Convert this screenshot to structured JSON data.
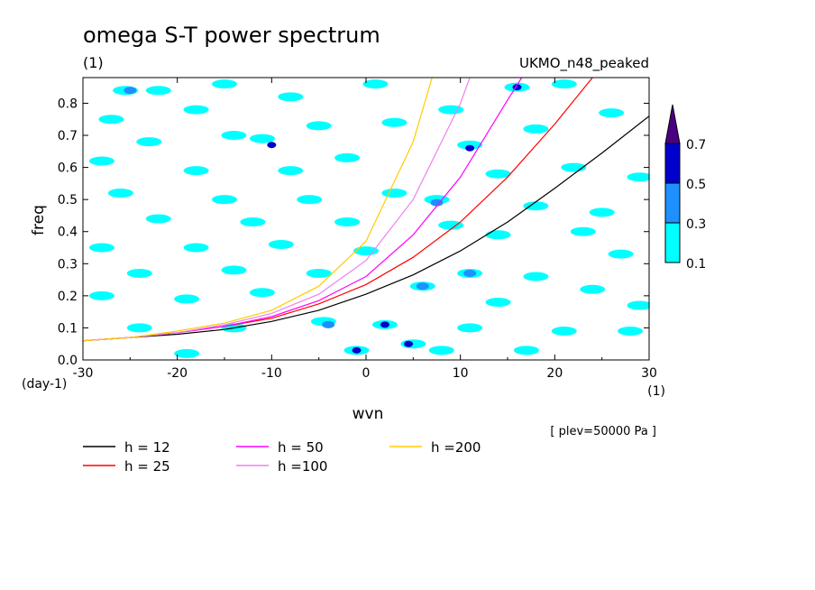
{
  "chart_data": {
    "type": "heatmap",
    "title": "omega S-T power spectrum",
    "subtitle_left": "(1)",
    "subtitle_right": "UKMO_n48_peaked",
    "xlabel": "wvn",
    "x_unit": "(1)",
    "ylabel": "freq",
    "y_unit": "(day-1)",
    "note": "[ plev=50000 Pa ]",
    "xlim": [
      -30,
      30
    ],
    "ylim": [
      0.0,
      0.88
    ],
    "x_ticks": [
      -30,
      -20,
      -10,
      0,
      10,
      20,
      30
    ],
    "x_tick_labels": [
      "-30",
      "-20",
      "-10",
      "0",
      "10",
      "20",
      "30"
    ],
    "y_ticks": [
      0.0,
      0.1,
      0.2,
      0.3,
      0.4,
      0.5,
      0.6,
      0.7,
      0.8
    ],
    "y_tick_labels": [
      "0.0",
      "0.1",
      "0.2",
      "0.3",
      "0.4",
      "0.5",
      "0.6",
      "0.7",
      "0.8"
    ],
    "colorbar": {
      "levels": [
        0.1,
        0.3,
        0.5,
        0.7
      ],
      "level_labels": [
        "0.1",
        "0.3",
        "0.5",
        "0.7"
      ],
      "colors": [
        "#00ffff",
        "#1e90ff",
        "#0000cd",
        "#4b0082"
      ],
      "extend": "max"
    },
    "contour_patches": [
      {
        "x": -25,
        "y": 0.84,
        "level": 0.3
      },
      {
        "x": -25.5,
        "y": 0.84,
        "level": 0.1
      },
      {
        "x": -10,
        "y": 0.67,
        "level": 0.5
      },
      {
        "x": -11,
        "y": 0.69,
        "level": 0.1
      },
      {
        "x": 2,
        "y": 0.11,
        "level": 0.5
      },
      {
        "x": 2,
        "y": 0.11,
        "level": 0.1
      },
      {
        "x": -1,
        "y": 0.03,
        "level": 0.5
      },
      {
        "x": -1,
        "y": 0.03,
        "level": 0.1
      },
      {
        "x": 4.5,
        "y": 0.05,
        "level": 0.5
      },
      {
        "x": 5,
        "y": 0.05,
        "level": 0.1
      },
      {
        "x": 11,
        "y": 0.66,
        "level": 0.5
      },
      {
        "x": 11,
        "y": 0.67,
        "level": 0.1
      },
      {
        "x": 16,
        "y": 0.85,
        "level": 0.5
      },
      {
        "x": 16,
        "y": 0.85,
        "level": 0.1
      },
      {
        "x": 7.5,
        "y": 0.49,
        "level": 0.3
      },
      {
        "x": 7.5,
        "y": 0.5,
        "level": 0.1
      },
      {
        "x": 11,
        "y": 0.27,
        "level": 0.3
      },
      {
        "x": 11,
        "y": 0.27,
        "level": 0.1
      },
      {
        "x": 6,
        "y": 0.23,
        "level": 0.3
      },
      {
        "x": 6,
        "y": 0.23,
        "level": 0.1
      },
      {
        "x": -4,
        "y": 0.11,
        "level": 0.3
      },
      {
        "x": -4.5,
        "y": 0.12,
        "level": 0.1
      },
      {
        "x": -22,
        "y": 0.84,
        "level": 0.1
      },
      {
        "x": -15,
        "y": 0.86,
        "level": 0.1
      },
      {
        "x": -27,
        "y": 0.75,
        "level": 0.1
      },
      {
        "x": -18,
        "y": 0.78,
        "level": 0.1
      },
      {
        "x": -8,
        "y": 0.82,
        "level": 0.1
      },
      {
        "x": 1,
        "y": 0.86,
        "level": 0.1
      },
      {
        "x": 3,
        "y": 0.74,
        "level": 0.1
      },
      {
        "x": 9,
        "y": 0.78,
        "level": 0.1
      },
      {
        "x": 21,
        "y": 0.86,
        "level": 0.1
      },
      {
        "x": 26,
        "y": 0.77,
        "level": 0.1
      },
      {
        "x": 18,
        "y": 0.72,
        "level": 0.1
      },
      {
        "x": -23,
        "y": 0.68,
        "level": 0.1
      },
      {
        "x": -14,
        "y": 0.7,
        "level": 0.1
      },
      {
        "x": -5,
        "y": 0.73,
        "level": 0.1
      },
      {
        "x": -2,
        "y": 0.63,
        "level": 0.1
      },
      {
        "x": -28,
        "y": 0.62,
        "level": 0.1
      },
      {
        "x": -18,
        "y": 0.59,
        "level": 0.1
      },
      {
        "x": -8,
        "y": 0.59,
        "level": 0.1
      },
      {
        "x": 14,
        "y": 0.58,
        "level": 0.1
      },
      {
        "x": 22,
        "y": 0.6,
        "level": 0.1
      },
      {
        "x": 29,
        "y": 0.57,
        "level": 0.1
      },
      {
        "x": -26,
        "y": 0.52,
        "level": 0.1
      },
      {
        "x": -15,
        "y": 0.5,
        "level": 0.1
      },
      {
        "x": -6,
        "y": 0.5,
        "level": 0.1
      },
      {
        "x": 3,
        "y": 0.52,
        "level": 0.1
      },
      {
        "x": 18,
        "y": 0.48,
        "level": 0.1
      },
      {
        "x": 25,
        "y": 0.46,
        "level": 0.1
      },
      {
        "x": -22,
        "y": 0.44,
        "level": 0.1
      },
      {
        "x": -12,
        "y": 0.43,
        "level": 0.1
      },
      {
        "x": -2,
        "y": 0.43,
        "level": 0.1
      },
      {
        "x": 9,
        "y": 0.42,
        "level": 0.1
      },
      {
        "x": 14,
        "y": 0.39,
        "level": 0.1
      },
      {
        "x": 23,
        "y": 0.4,
        "level": 0.1
      },
      {
        "x": -28,
        "y": 0.35,
        "level": 0.1
      },
      {
        "x": -18,
        "y": 0.35,
        "level": 0.1
      },
      {
        "x": -9,
        "y": 0.36,
        "level": 0.1
      },
      {
        "x": 0,
        "y": 0.34,
        "level": 0.1
      },
      {
        "x": 27,
        "y": 0.33,
        "level": 0.1
      },
      {
        "x": -24,
        "y": 0.27,
        "level": 0.1
      },
      {
        "x": -14,
        "y": 0.28,
        "level": 0.1
      },
      {
        "x": -5,
        "y": 0.27,
        "level": 0.1
      },
      {
        "x": 18,
        "y": 0.26,
        "level": 0.1
      },
      {
        "x": 24,
        "y": 0.22,
        "level": 0.1
      },
      {
        "x": -28,
        "y": 0.2,
        "level": 0.1
      },
      {
        "x": -19,
        "y": 0.19,
        "level": 0.1
      },
      {
        "x": -11,
        "y": 0.21,
        "level": 0.1
      },
      {
        "x": 14,
        "y": 0.18,
        "level": 0.1
      },
      {
        "x": 29,
        "y": 0.17,
        "level": 0.1
      },
      {
        "x": -24,
        "y": 0.1,
        "level": 0.1
      },
      {
        "x": -14,
        "y": 0.1,
        "level": 0.1
      },
      {
        "x": 11,
        "y": 0.1,
        "level": 0.1
      },
      {
        "x": 21,
        "y": 0.09,
        "level": 0.1
      },
      {
        "x": 28,
        "y": 0.09,
        "level": 0.1
      },
      {
        "x": -19,
        "y": 0.02,
        "level": 0.1
      },
      {
        "x": 8,
        "y": 0.03,
        "level": 0.1
      },
      {
        "x": 17,
        "y": 0.03,
        "level": 0.1
      }
    ],
    "series": [
      {
        "name": "h = 12",
        "color": "#000000",
        "x": [
          -30,
          -25,
          -20,
          -15,
          -10,
          -5,
          0,
          5,
          10,
          15,
          20,
          25,
          30
        ],
        "y": [
          0.06,
          0.07,
          0.08,
          0.095,
          0.12,
          0.155,
          0.205,
          0.265,
          0.34,
          0.43,
          0.535,
          0.645,
          0.76
        ]
      },
      {
        "name": "h = 25",
        "color": "#ff0000",
        "x": [
          -30,
          -25,
          -20,
          -15,
          -10,
          -5,
          0,
          5,
          10,
          15,
          20,
          24
        ],
        "y": [
          0.06,
          0.07,
          0.085,
          0.105,
          0.13,
          0.175,
          0.235,
          0.32,
          0.43,
          0.57,
          0.735,
          0.88
        ]
      },
      {
        "name": "h = 50",
        "color": "#ff00ff",
        "x": [
          -30,
          -25,
          -20,
          -15,
          -10,
          -5,
          0,
          5,
          10,
          15,
          16.5
        ],
        "y": [
          0.06,
          0.07,
          0.085,
          0.105,
          0.135,
          0.185,
          0.26,
          0.39,
          0.57,
          0.81,
          0.88
        ]
      },
      {
        "name": "h =100",
        "color": "#ee82ee",
        "x": [
          -30,
          -25,
          -20,
          -15,
          -10,
          -5,
          0,
          5,
          10,
          11
        ],
        "y": [
          0.06,
          0.07,
          0.085,
          0.11,
          0.145,
          0.205,
          0.31,
          0.5,
          0.8,
          0.88
        ]
      },
      {
        "name": "h =200",
        "color": "#ffcc00",
        "x": [
          -30,
          -25,
          -20,
          -15,
          -10,
          -5,
          0,
          5,
          7
        ],
        "y": [
          0.06,
          0.07,
          0.09,
          0.115,
          0.155,
          0.23,
          0.37,
          0.68,
          0.88
        ]
      }
    ],
    "legend_placement": "bottom"
  }
}
